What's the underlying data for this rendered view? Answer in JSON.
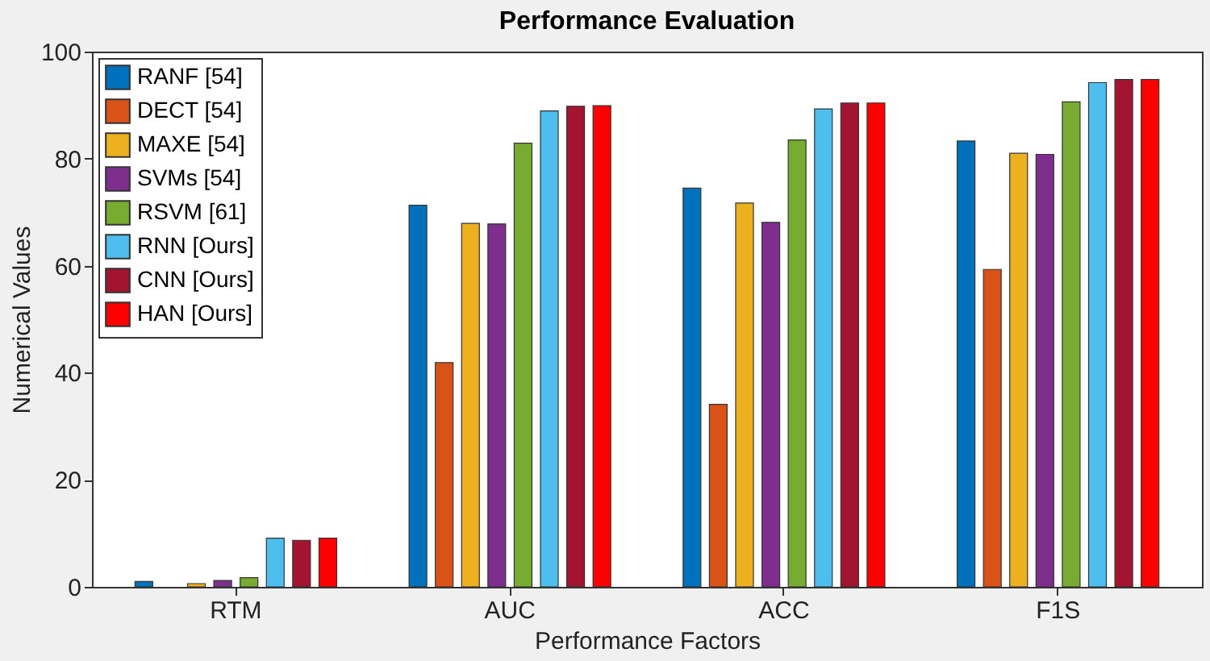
{
  "chart_data": {
    "type": "bar",
    "title": "Performance Evaluation",
    "xlabel": "Performance Factors",
    "ylabel": "Numerical Values",
    "categories": [
      "RTM",
      "AUC",
      "ACC",
      "F1S"
    ],
    "series": [
      {
        "name": "RANF [54]",
        "color": "#0072bd",
        "values": [
          1.0,
          71.3,
          74.5,
          83.3
        ]
      },
      {
        "name": "DECT [54]",
        "color": "#d95319",
        "values": [
          null,
          41.9,
          34.1,
          59.3
        ]
      },
      {
        "name": "MAXE [54]",
        "color": "#edb120",
        "values": [
          0.6,
          67.9,
          71.7,
          81.0
        ]
      },
      {
        "name": "SVMs [54]",
        "color": "#7e2f8e",
        "values": [
          1.2,
          67.8,
          68.1,
          80.8
        ]
      },
      {
        "name": "RSVM [61]",
        "color": "#77ac30",
        "values": [
          1.7,
          82.9,
          83.5,
          90.6
        ]
      },
      {
        "name": "RNN [Ours]",
        "color": "#4dbeee",
        "values": [
          9.1,
          88.9,
          89.3,
          94.2
        ]
      },
      {
        "name": "CNN [Ours]",
        "color": "#a2142f",
        "values": [
          8.7,
          89.8,
          90.4,
          94.8
        ]
      },
      {
        "name": "HAN [Ours]",
        "color": "#ff0000",
        "values": [
          9.1,
          89.9,
          90.4,
          94.8
        ]
      }
    ],
    "ylim": [
      0,
      100
    ],
    "yticks": [
      0,
      20,
      40,
      60,
      80,
      100
    ],
    "grid": false,
    "legend": "top left"
  }
}
